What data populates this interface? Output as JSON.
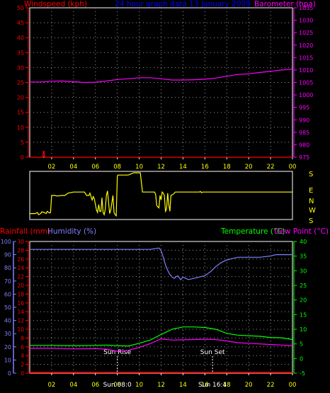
{
  "header": {
    "left_label": "Windspeed (kph)",
    "center_label": "24 hour graph data  13 January 2009",
    "right_label": "Barometer (hpa)"
  },
  "colors": {
    "wind": "#ff0000",
    "baro": "#ff00ff",
    "title": "#0000ff",
    "grid": "#9a9a9a",
    "frame": "#ffffff",
    "dir": "#ffff00",
    "hum": "#8080ff",
    "temp": "#00ff00",
    "dew": "#ff00ff",
    "rain": "#ff0000",
    "sun": "#ffffff"
  },
  "x_tick_labels": [
    "02",
    "04",
    "06",
    "08",
    "10",
    "12",
    "14",
    "16",
    "18",
    "20",
    "22",
    "00"
  ],
  "dir_labels": [
    "S",
    "E",
    "N",
    "W",
    "S"
  ],
  "bottom_labels": {
    "rainfall": "Rainfall (mm)",
    "humidity": "Humidity (%)",
    "temperature": "Temperature (°C)",
    "dewpoint": "Dew Point (°C)",
    "sunrise": "Sun Rise",
    "sunset": "Sun Set",
    "sunrise_time": "Sun 08:0",
    "sunset_time": "Sun 16:4"
  },
  "chart_data": [
    {
      "type": "line",
      "title": "24 hour graph data  13 January 2009",
      "x_unit": "hour",
      "xlim": [
        0,
        24
      ],
      "y_left": {
        "label": "Windspeed (kph)",
        "lim": [
          0,
          50
        ],
        "ticks": [
          0,
          5,
          10,
          15,
          20,
          25,
          30,
          35,
          40,
          45,
          50
        ]
      },
      "y_right": {
        "label": "Barometer (hpa)",
        "lim": [
          975,
          1035
        ],
        "ticks": [
          975,
          980,
          985,
          990,
          995,
          1000,
          1005,
          1010,
          1015,
          1020,
          1025,
          1030,
          1035
        ]
      },
      "series": [
        {
          "name": "Barometer (hpa)",
          "axis": "right",
          "x": [
            0,
            1,
            2,
            3,
            4,
            5,
            6,
            7,
            8,
            9,
            10,
            11,
            12,
            13,
            14,
            15,
            16,
            17,
            18,
            19,
            20,
            21,
            22,
            23,
            24
          ],
          "y": [
            1005.2,
            1005.2,
            1005.5,
            1005.6,
            1005.3,
            1005.0,
            1005.1,
            1005.6,
            1006.2,
            1006.5,
            1006.9,
            1006.9,
            1006.5,
            1006.0,
            1006.0,
            1006.1,
            1006.3,
            1006.8,
            1007.5,
            1008.2,
            1008.5,
            1009.0,
            1009.5,
            1010.0,
            1010.4
          ]
        },
        {
          "name": "Windspeed (kph)",
          "axis": "left",
          "x": [
            0,
            1.2,
            1.25,
            1.3,
            1.35,
            24
          ],
          "y": [
            0,
            0,
            2,
            2,
            0,
            0
          ]
        }
      ]
    },
    {
      "type": "line",
      "xlim": [
        0,
        24
      ],
      "categories_y": [
        "S",
        "E",
        "N",
        "W",
        "S"
      ],
      "series": [
        {
          "name": "Wind direction",
          "x": [
            0,
            0.5,
            0.7,
            0.8,
            1.0,
            1.1,
            1.3,
            1.5,
            1.6,
            1.8,
            1.9,
            2.0,
            2.3,
            2.5,
            3.0,
            3.2,
            3.5,
            4.0,
            4.5,
            4.8,
            5.0,
            5.2,
            5.4,
            5.5,
            5.7,
            5.8,
            5.9,
            6.1,
            6.2,
            6.3,
            6.4,
            6.5,
            6.6,
            6.7,
            6.8,
            6.9,
            7.0,
            7.1,
            7.2,
            7.3,
            7.4,
            7.6,
            7.7,
            7.8,
            7.9,
            8.0,
            8.05,
            8.2,
            9.0,
            9.5,
            9.9,
            10.1,
            10.3,
            11.4,
            11.5,
            11.6,
            11.8,
            11.9,
            12.0,
            12.1,
            12.2,
            12.3,
            12.4,
            12.5,
            12.6,
            12.7,
            12.8,
            12.9,
            13.1,
            13.3,
            15.5,
            15.6,
            15.7,
            15.8,
            24
          ],
          "y": [
            3.6,
            3.6,
            3.5,
            3.7,
            3.6,
            3.45,
            3.5,
            3.6,
            3.4,
            3.55,
            3.5,
            2.0,
            2.0,
            2.05,
            2.0,
            2.0,
            1.8,
            1.7,
            1.7,
            1.7,
            1.7,
            2.0,
            2.0,
            1.8,
            2.4,
            2.1,
            2.3,
            3.3,
            3.5,
            2.8,
            3.4,
            3.4,
            2.2,
            3.5,
            3.7,
            3.2,
            2.0,
            1.6,
            2.6,
            3.6,
            3.3,
            2.0,
            3.5,
            3.7,
            3.8,
            0.3,
            0.2,
            0.2,
            0.2,
            0.0,
            0.0,
            0.0,
            1.7,
            1.7,
            1.9,
            2.9,
            3.1,
            2.0,
            2.4,
            1.7,
            1.8,
            2.0,
            3.4,
            3.2,
            1.8,
            2.8,
            3.4,
            2.0,
            1.9,
            1.7,
            1.7,
            1.65,
            1.75,
            1.7,
            1.7
          ]
        }
      ]
    },
    {
      "type": "line",
      "xlim": [
        0,
        24
      ],
      "y_left": {
        "label": "Humidity (%)",
        "lim": [
          0,
          100
        ],
        "ticks": [
          0,
          10,
          20,
          30,
          40,
          50,
          60,
          70,
          80,
          90,
          100
        ]
      },
      "y_left_inner": {
        "label": "Rainfall (mm)",
        "lim": [
          0,
          30
        ],
        "ticks": [
          0,
          2,
          4,
          6,
          8,
          10,
          12,
          14,
          16,
          18,
          20,
          22,
          24,
          26,
          28,
          30
        ]
      },
      "y_right": {
        "label": "Temperature (°C)",
        "lim": [
          -5,
          40
        ],
        "ticks": [
          -5,
          0,
          5,
          10,
          15,
          20,
          25,
          30,
          35,
          40
        ]
      },
      "series": [
        {
          "name": "Humidity (%)",
          "axis": "left",
          "x": [
            0,
            2,
            4,
            6,
            8,
            10,
            11.0,
            11.8,
            12.0,
            12.2,
            12.4,
            12.6,
            12.8,
            13.0,
            13.2,
            13.5,
            13.8,
            14.0,
            14.5,
            15,
            15.5,
            16,
            16.5,
            17,
            17.5,
            18,
            18.5,
            19,
            19.5,
            20,
            21,
            22,
            22.5,
            23,
            24
          ],
          "y": [
            94,
            94,
            94,
            94,
            94,
            94,
            94,
            95,
            93,
            88,
            82,
            78,
            75,
            73,
            72,
            74,
            71,
            73,
            71,
            72,
            73,
            74,
            77,
            81,
            84,
            86,
            87,
            88,
            88,
            88,
            88,
            89,
            90,
            90,
            90
          ]
        },
        {
          "name": "Temperature (°C)",
          "axis": "right",
          "x": [
            0,
            2,
            4,
            6,
            7,
            8,
            9,
            10,
            11,
            12,
            13,
            14,
            15,
            16,
            17,
            18,
            19,
            20,
            21,
            22,
            23,
            24
          ],
          "y": [
            4.5,
            4.5,
            4.4,
            4.5,
            4.6,
            4.4,
            4.3,
            5.2,
            6.3,
            8.2,
            10.0,
            10.8,
            10.8,
            10.6,
            10.0,
            8.6,
            8.0,
            7.8,
            7.6,
            7.2,
            7.1,
            6.5
          ]
        },
        {
          "name": "Dew Point (°C)",
          "axis": "right",
          "x": [
            0,
            2,
            4,
            6,
            7,
            8,
            9,
            10,
            11,
            12,
            13,
            14,
            15,
            16,
            17,
            18,
            19,
            20,
            21,
            22,
            23,
            24
          ],
          "y": [
            3.5,
            3.5,
            3.3,
            3.4,
            3.2,
            2.5,
            2.8,
            3.8,
            5.1,
            6.7,
            6.3,
            6.4,
            6.5,
            6.6,
            6.5,
            6.0,
            5.4,
            5.2,
            5.0,
            4.8,
            4.6,
            4.4
          ]
        },
        {
          "name": "Rainfall (mm)",
          "axis": "left_inner",
          "x": [
            0,
            24
          ],
          "y": [
            0,
            0
          ]
        }
      ],
      "annotations": [
        {
          "text": "Sun Rise",
          "x": 8.0
        },
        {
          "text": "Sun Set",
          "x": 16.7
        }
      ]
    }
  ]
}
